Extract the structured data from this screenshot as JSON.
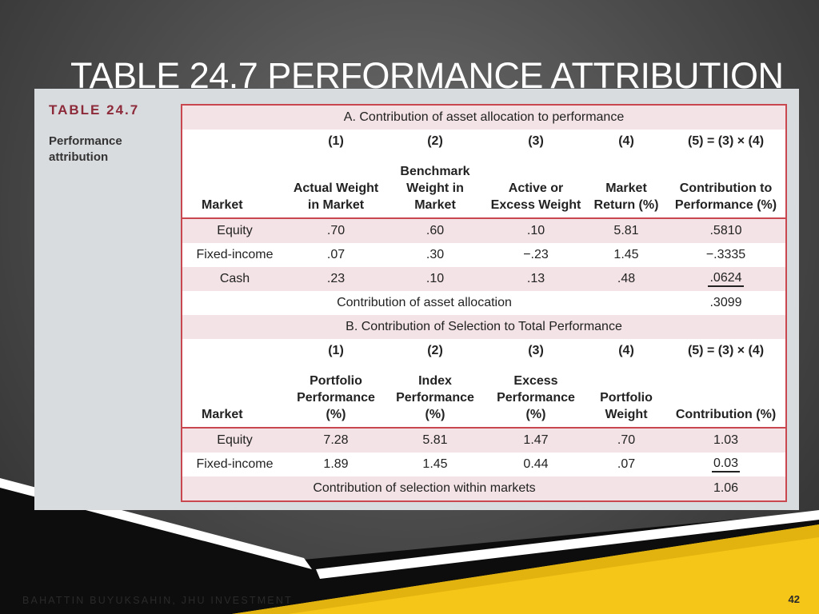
{
  "slide": {
    "title": "TABLE 24.7 PERFORMANCE ATTRIBUTION",
    "footer": "BAHATTIN BUYUKSAHIN, JHU INVESTMENT",
    "page_number": "42"
  },
  "caption": {
    "label": "TABLE 24.7",
    "description": "Performance attribution"
  },
  "section_a": {
    "title": "A. Contribution of asset allocation to performance",
    "col_numbers": [
      "(1)",
      "(2)",
      "(3)",
      "(4)",
      "(5) = (3) × (4)"
    ],
    "headers": [
      "Market",
      "Actual Weight in Market",
      "Benchmark Weight in Market",
      "Active or Excess Weight",
      "Market Return (%)",
      "Contribution to Performance (%)"
    ],
    "rows": [
      [
        "Equity",
        ".70",
        ".60",
        ".10",
        "5.81",
        ".5810"
      ],
      [
        "Fixed-income",
        ".07",
        ".30",
        "−.23",
        "1.45",
        "−.3335"
      ],
      [
        "Cash",
        ".23",
        ".10",
        ".13",
        ".48",
        ".0624"
      ]
    ],
    "total_label": "Contribution of asset allocation",
    "total_value": ".3099"
  },
  "section_b": {
    "title": "B. Contribution of Selection to Total Performance",
    "col_numbers": [
      "(1)",
      "(2)",
      "(3)",
      "(4)",
      "(5) = (3) × (4)"
    ],
    "headers": [
      "Market",
      "Portfolio Performance (%)",
      "Index Performance (%)",
      "Excess Performance (%)",
      "Portfolio Weight",
      "Contribution (%)"
    ],
    "rows": [
      [
        "Equity",
        "7.28",
        "5.81",
        "1.47",
        ".70",
        "1.03"
      ],
      [
        "Fixed-income",
        "1.89",
        "1.45",
        "0.44",
        ".07",
        "0.03"
      ]
    ],
    "total_label": "Contribution of selection within markets",
    "total_value": "1.06"
  },
  "colors": {
    "accent_red": "#c9484f",
    "caption_red": "#8d2a3a",
    "row_shade": "#f3e3e6",
    "yellow": "#f5c518"
  }
}
